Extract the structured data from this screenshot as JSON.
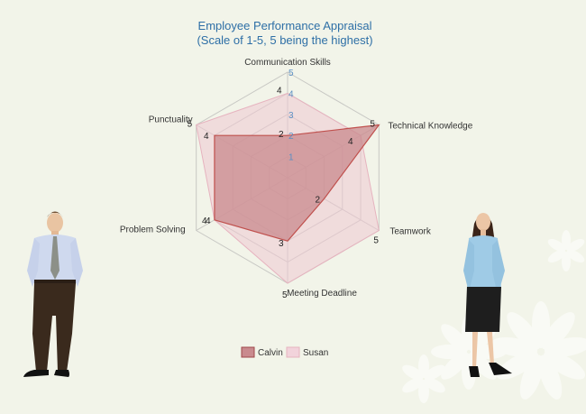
{
  "chart_data": {
    "type": "radar",
    "title": "Employee Performance Appraisal",
    "subtitle": "(Scale of 1-5, 5 being the highest)",
    "categories": [
      "Communication Skills",
      "Technical Knowledge",
      "Teamwork",
      "Meeting Deadline",
      "Problem Solving",
      "Punctuality"
    ],
    "scale": {
      "min": 0,
      "max": 5,
      "ticks": [
        "1",
        "2",
        "3",
        "4",
        "5"
      ]
    },
    "series": [
      {
        "name": "Calvin",
        "values": [
          2,
          5,
          2,
          3,
          4,
          4
        ],
        "color": "#c0504d",
        "fill": "#c98a8e"
      },
      {
        "name": "Susan",
        "values": [
          4,
          4,
          5,
          5,
          4,
          5
        ],
        "color": "#e6b3bf",
        "fill": "#efc9d2"
      }
    ],
    "grid": true,
    "legend_position": "bottom"
  },
  "background": "#f2f4e9",
  "illustrations": [
    "man-in-shirt-and-tie",
    "woman-in-blouse-and-skirt",
    "decorative-flowers"
  ]
}
